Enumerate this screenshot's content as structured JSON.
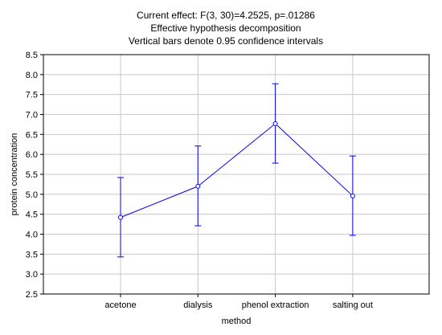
{
  "chart_data": {
    "type": "line",
    "title_lines": [
      "Current effect: F(3, 30)=4.2525, p=.01286",
      "Effective hypothesis decomposition",
      "Vertical bars denote 0.95 confidence intervals"
    ],
    "xlabel": "method",
    "ylabel": "protein concentration",
    "categories": [
      "acetone",
      "dialysis",
      "phenol extraction",
      "salting out"
    ],
    "values": [
      4.42,
      5.2,
      6.77,
      4.96
    ],
    "ci_lower": [
      3.43,
      4.21,
      5.78,
      3.97
    ],
    "ci_upper": [
      5.42,
      6.21,
      7.77,
      5.96
    ],
    "ylim": [
      2.5,
      8.5
    ],
    "yticks": [
      "2.5",
      "3.0",
      "3.5",
      "4.0",
      "4.5",
      "5.0",
      "5.5",
      "6.0",
      "6.5",
      "7.0",
      "7.5",
      "8.0",
      "8.5"
    ],
    "grid": true,
    "colors": {
      "series": "#0000ee",
      "grid": "#c8c8c8",
      "axis": "#000000"
    }
  }
}
